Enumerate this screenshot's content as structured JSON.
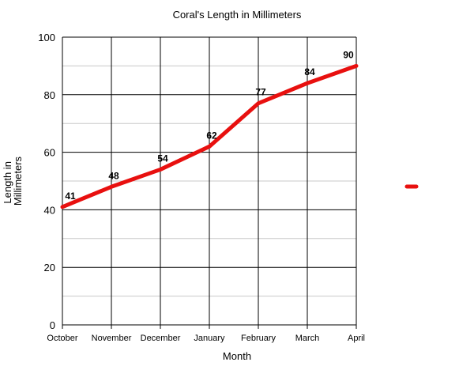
{
  "chart_data": {
    "type": "line",
    "title": "Coral's Length in Millimeters",
    "xlabel": "Month",
    "ylabel": "Length in Millimeters",
    "ylabel_lines": [
      "Length in",
      "Millimeters"
    ],
    "categories": [
      "October",
      "November",
      "December",
      "January",
      "February",
      "March",
      "April"
    ],
    "series": [
      {
        "values": [
          41,
          48,
          54,
          62,
          77,
          84,
          90
        ],
        "color": "#e8100f"
      }
    ],
    "data_labels": [
      "41",
      "48",
      "54",
      "62",
      "77",
      "84",
      "90"
    ],
    "ylim": [
      0,
      100
    ],
    "yticks": [
      0,
      20,
      40,
      60,
      80,
      100
    ],
    "ytick_labels": [
      "0",
      "20",
      "40",
      "60",
      "80",
      "100"
    ],
    "minor_grid": true,
    "grid": true,
    "legend": {
      "position": "right",
      "swatch_color": "#e8100f"
    }
  }
}
